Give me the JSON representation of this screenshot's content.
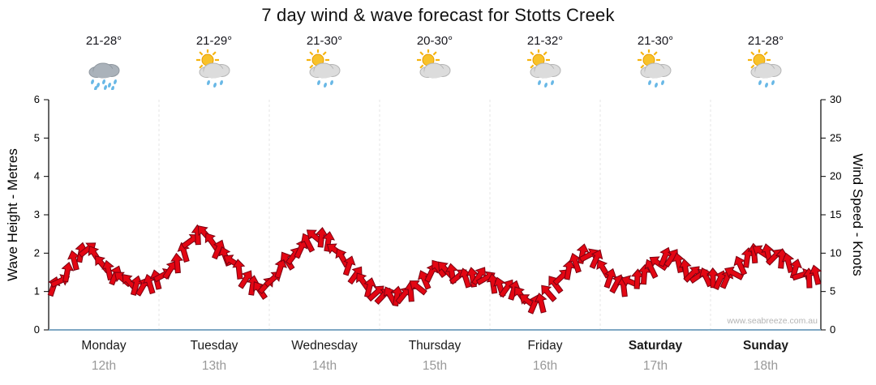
{
  "title": "7 day wind & wave forecast for Stotts Creek",
  "watermark": "www.seabreeze.com.au",
  "axes": {
    "left": {
      "label": "Wave Height - Metres",
      "ticks": [
        0,
        1,
        2,
        3,
        4,
        5,
        6
      ],
      "range": [
        0,
        6
      ]
    },
    "right": {
      "label": "Wind Speed - Knots",
      "ticks": [
        0,
        5,
        10,
        15,
        20,
        25,
        30
      ],
      "range": [
        0,
        30
      ]
    }
  },
  "days": [
    {
      "name": "Monday",
      "date": "12th",
      "temp": "21-28°",
      "icon": "rain",
      "bold": false
    },
    {
      "name": "Tuesday",
      "date": "13th",
      "temp": "21-29°",
      "icon": "sun-cloud-rain",
      "bold": false
    },
    {
      "name": "Wednesday",
      "date": "14th",
      "temp": "21-30°",
      "icon": "sun-cloud-rain",
      "bold": false
    },
    {
      "name": "Thursday",
      "date": "15th",
      "temp": "20-30°",
      "icon": "sun-cloud",
      "bold": false
    },
    {
      "name": "Friday",
      "date": "16th",
      "temp": "21-32°",
      "icon": "sun-cloud-rain",
      "bold": false
    },
    {
      "name": "Saturday",
      "date": "17th",
      "temp": "21-30°",
      "icon": "sun-cloud-rain",
      "bold": true
    },
    {
      "name": "Sunday",
      "date": "18th",
      "temp": "21-28°",
      "icon": "sun-cloud-rain",
      "bold": true
    }
  ],
  "colors": {
    "arrow_fill": "#e30613",
    "arrow_stroke": "#7a0010",
    "axis": "#000000",
    "baseline": "#7fa8c4",
    "separator": "#e6e6e6",
    "date_text": "#999999"
  },
  "chart_data": {
    "type": "line",
    "title": "7 day wind & wave forecast for Stotts Creek",
    "ylabel": "Wave Height - Metres",
    "y2label": "Wind Speed - Knots",
    "ylim": [
      0,
      6
    ],
    "y2lim": [
      0,
      30
    ],
    "x_categories": [
      "Monday 12th",
      "Tuesday 13th",
      "Wednesday 14th",
      "Thursday 15th",
      "Friday 16th",
      "Saturday 17th",
      "Sunday 18th"
    ],
    "samples_per_day": 8,
    "note": "Red wind-arrow band; right axis knots = metres x 5",
    "series": [
      {
        "name": "Wind & wave forecast",
        "unit": "metres",
        "values": [
          1.0,
          1.4,
          1.9,
          2.1,
          1.7,
          1.3,
          1.2,
          1.2,
          1.3,
          1.7,
          2.3,
          2.5,
          2.2,
          1.8,
          1.3,
          1.1,
          1.3,
          1.8,
          2.2,
          2.4,
          2.3,
          1.9,
          1.3,
          1.1,
          0.9,
          0.8,
          1.1,
          1.4,
          1.6,
          1.5,
          1.3,
          1.4,
          1.2,
          1.0,
          0.8,
          0.7,
          1.1,
          1.6,
          2.0,
          1.8,
          1.4,
          1.1,
          1.3,
          1.7,
          1.9,
          1.7,
          1.5,
          1.3,
          1.3,
          1.6,
          1.9,
          2.1,
          1.9,
          1.6,
          1.4,
          1.5
        ]
      }
    ]
  }
}
